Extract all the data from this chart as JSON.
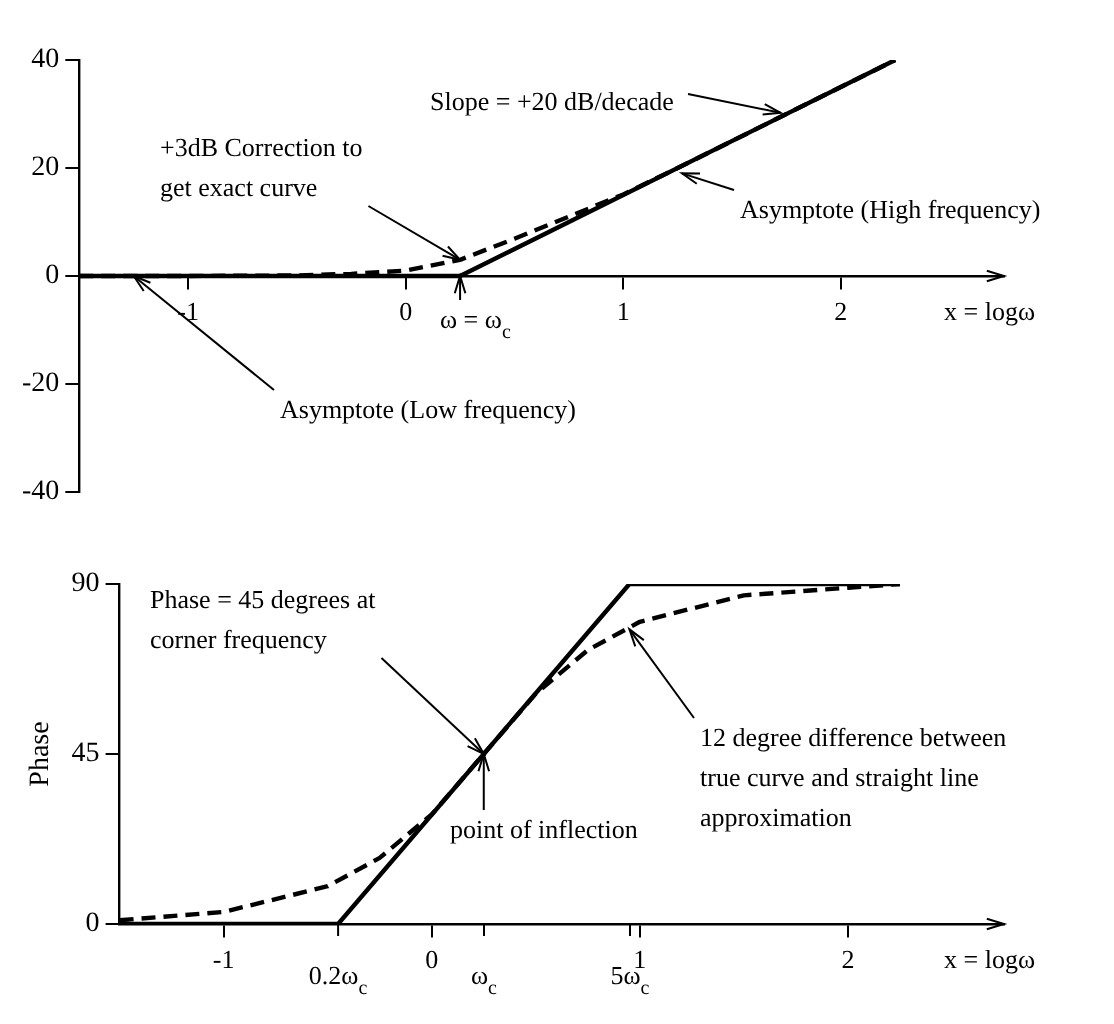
{
  "chart_data": [
    {
      "type": "line",
      "xlim": [
        -1.5,
        2.75
      ],
      "xticks": [
        -1,
        0,
        1,
        2
      ],
      "ylim": [
        -40,
        40
      ],
      "yticks": [
        -40,
        -20,
        0,
        20,
        40
      ],
      "xlabel": "x = logω",
      "grid": false,
      "legend": false,
      "marker": "none",
      "series": [
        {
          "color": "#000000",
          "line_style": "solid",
          "x": [
            -1.5,
            0.25,
            2.25
          ],
          "values": [
            0,
            0,
            40
          ]
        },
        {
          "color": "#000000",
          "line_style": "dashed",
          "x": [
            -1.5,
            -1,
            -0.5,
            -0.25,
            0,
            0.25,
            0.5,
            0.75,
            1,
            1.25,
            1.5,
            2,
            2.25
          ],
          "values": [
            0,
            0,
            0.1,
            0.4,
            1,
            3,
            6.9,
            11,
            15.1,
            20,
            25,
            35,
            40
          ]
        }
      ],
      "annotations": [
        {
          "text": "Slope = +20 dB/decade",
          "x": 1.75,
          "y": 30
        },
        {
          "text": "+3dB Correction to\nget exact curve",
          "x": 0.25,
          "y": 3
        },
        {
          "text": "Asymptote (High frequency)",
          "x": 1.27,
          "y": 19
        },
        {
          "text": "ω = ω$_{c}$",
          "x": 0.25,
          "y": 0
        },
        {
          "text": "Asymptote (Low frequency)",
          "x": -1.25,
          "y": 0
        }
      ]
    },
    {
      "type": "line",
      "xlim": [
        -1.5,
        2.75
      ],
      "xticks": [
        -1,
        0,
        1,
        2
      ],
      "ylim": [
        0,
        90
      ],
      "yticks": [
        0,
        45,
        90
      ],
      "xlabel": "x = logω",
      "ylabel": "Phase",
      "grid": false,
      "legend": false,
      "marker": "none",
      "series": [
        {
          "color": "#000000",
          "line_style": "solid",
          "x": [
            -1.5,
            -0.45,
            0.95,
            2.25
          ],
          "values": [
            0,
            0,
            90,
            90
          ]
        },
        {
          "color": "#000000",
          "line_style": "dashed",
          "x": [
            -1.5,
            -1,
            -0.5,
            -0.25,
            0,
            0.25,
            0.5,
            0.75,
            1,
            1.5,
            2,
            2.25
          ],
          "values": [
            1,
            3.2,
            10,
            17.5,
            29,
            45,
            61,
            72.5,
            80,
            87,
            89,
            90
          ]
        }
      ],
      "annotations": [
        {
          "text": "Phase = 45 degrees at\ncorner frequency",
          "x": 0.25,
          "y": 45
        },
        {
          "text": "point of inflection",
          "x": 0.25,
          "y": 45
        },
        {
          "text": "12 degree difference between\ntrue curve and straight line\napproximation",
          "x": 0.95,
          "y": 78
        },
        {
          "text": "0.2ω$_{c}$",
          "x": -0.45,
          "y": 0
        },
        "ω$_{c}$",
        "5ω$_{c}$"
      ]
    }
  ]
}
